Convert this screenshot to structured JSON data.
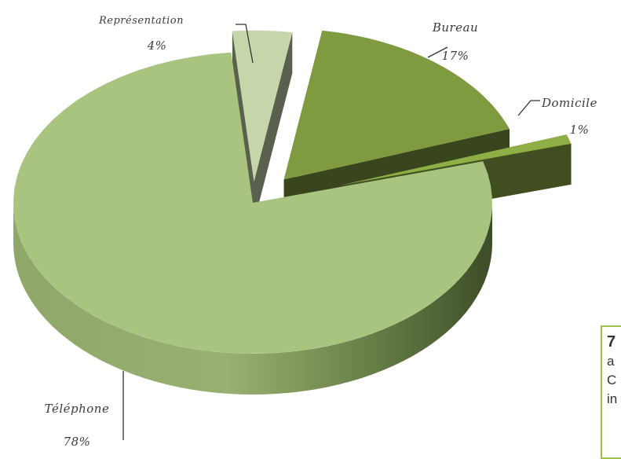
{
  "chart_data": {
    "type": "pie",
    "style": "3d-exploded",
    "categories": [
      "Téléphone",
      "Représentation",
      "Bureau",
      "Domicile"
    ],
    "values": [
      78,
      4,
      17,
      1
    ],
    "labels": [
      {
        "name": "Téléphone",
        "percent": "78%"
      },
      {
        "name": "Représentation",
        "percent": "4%"
      },
      {
        "name": "Bureau",
        "percent": "17%"
      },
      {
        "name": "Domicile",
        "percent": "1%"
      }
    ],
    "colors": {
      "Téléphone": "#a9c47f",
      "Représentation": "#c5d6aa",
      "Bureau": "#7f9a3f",
      "Domicile": "#8fae46"
    },
    "legend": "none"
  },
  "side_note": {
    "lines": [
      "7",
      "a",
      "C",
      "in"
    ],
    "border_color": "#9cc04a"
  }
}
